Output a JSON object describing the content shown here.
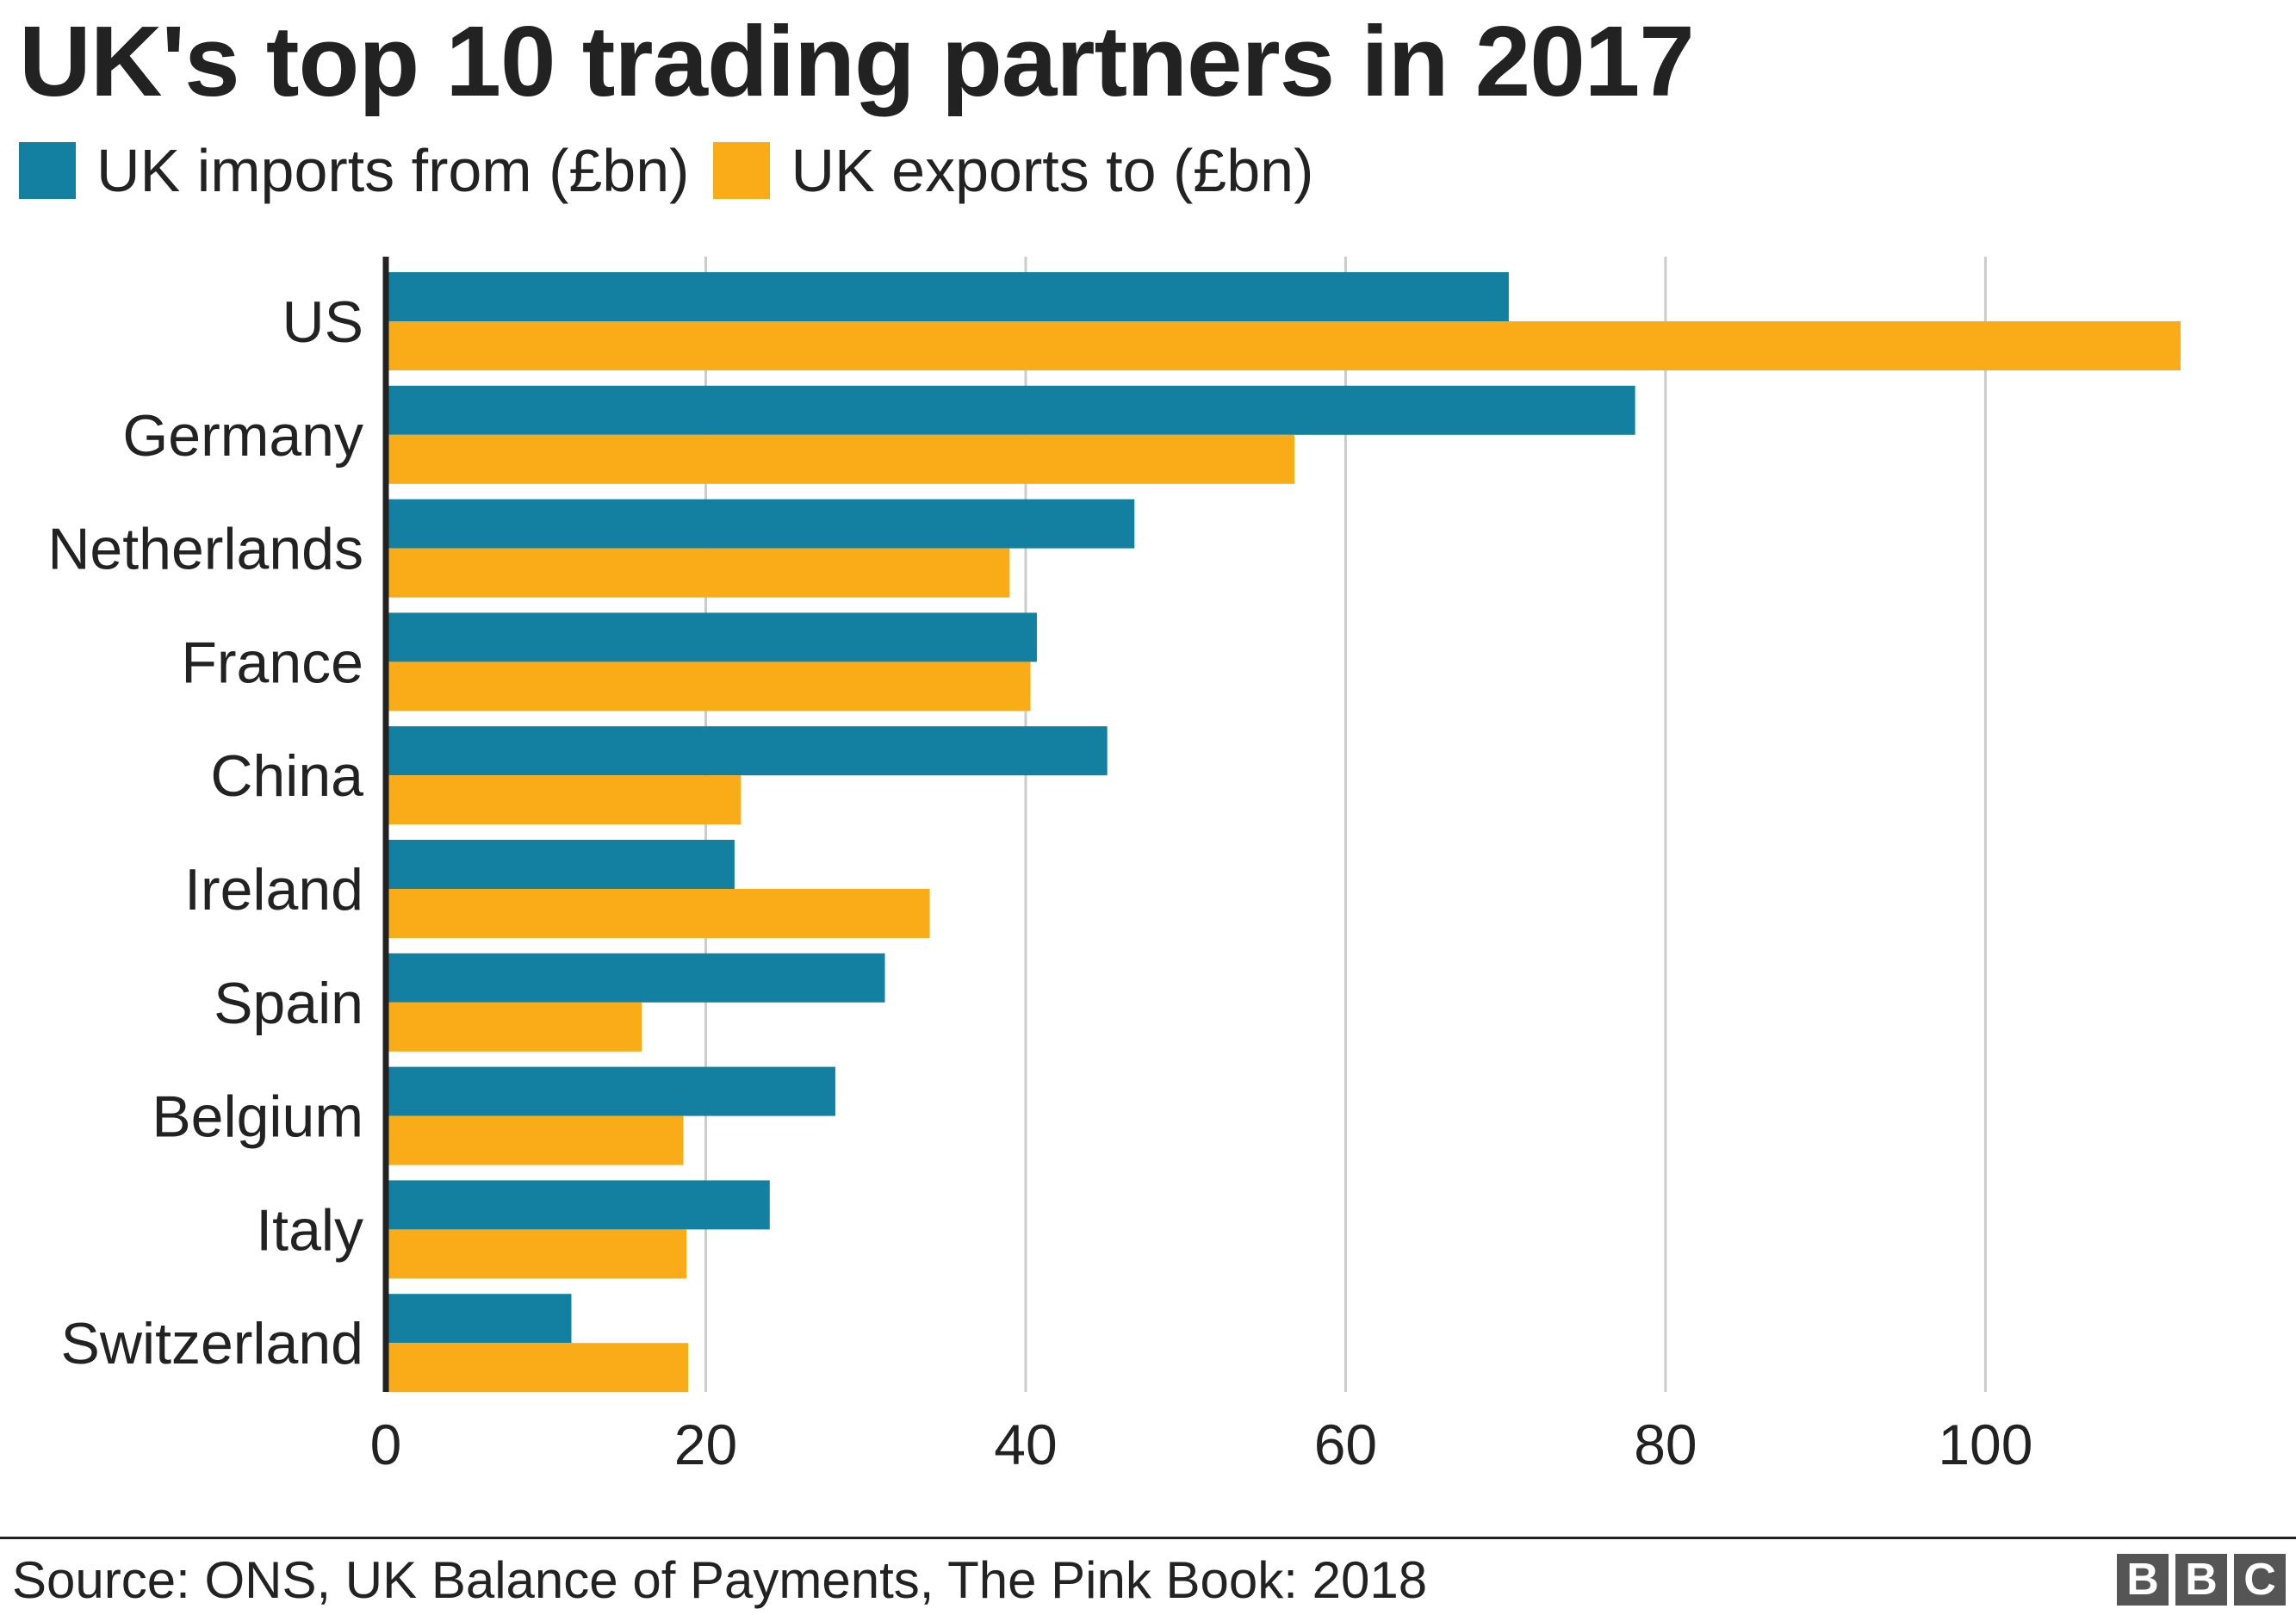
{
  "chart_data": {
    "type": "bar",
    "orientation": "horizontal",
    "title": "UK's top 10 trading partners in 2017",
    "categories": [
      "US",
      "Germany",
      "Netherlands",
      "France",
      "China",
      "Ireland",
      "Spain",
      "Belgium",
      "Italy",
      "Switzerland"
    ],
    "series": [
      {
        "name": "UK imports from (£bn)",
        "color": "#1380A1",
        "values": [
          70.2,
          78.1,
          46.8,
          40.7,
          45.1,
          21.8,
          31.2,
          28.1,
          24.0,
          11.6
        ]
      },
      {
        "name": "UK exports to (£bn)",
        "color": "#FAAB18",
        "values": [
          112.2,
          56.8,
          39.0,
          40.3,
          22.2,
          34.0,
          16.0,
          18.6,
          18.8,
          18.9
        ]
      }
    ],
    "xlim": [
      0,
      112.2
    ],
    "xticks": [
      0,
      20,
      40,
      60,
      80,
      100
    ],
    "grid": true,
    "legend_position": "top-left"
  },
  "source": "Source: ONS, UK Balance of Payments, The Pink Book: 2018",
  "logo": "BBC"
}
